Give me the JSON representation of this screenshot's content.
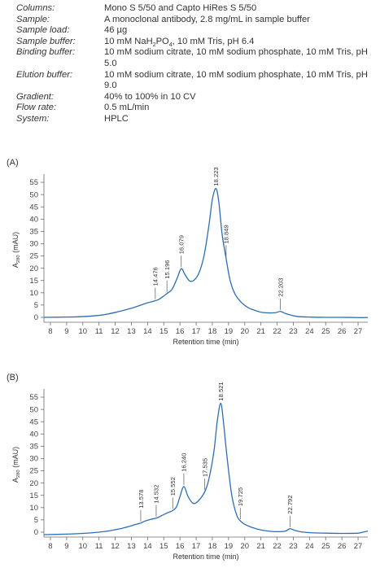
{
  "conditions": [
    {
      "label": "Columns:",
      "value": "Mono S 5/50 and Capto HiRes S 5/50"
    },
    {
      "label": "Sample:",
      "value": "A monoclonal antibody, 2.8 mg/mL in sample buffer"
    },
    {
      "label": "Sample load:",
      "value": "46 µg"
    },
    {
      "label": "Sample buffer:",
      "value_parts": [
        "10 mM NaH",
        "2",
        "PO",
        "4",
        ", 10 mM Tris, pH 6.4"
      ]
    },
    {
      "label": "Binding buffer:",
      "value": "10 mM sodium citrate, 10 mM sodium phosphate, 10 mM Tris, pH 5.0"
    },
    {
      "label": "Elution buffer:",
      "value": "10 mM sodium citrate, 10 mM sodium phosphate, 10 mM Tris, pH 9.0"
    },
    {
      "label": "Gradient:",
      "value": "40% to 100% in 10 CV"
    },
    {
      "label": "Flow rate:",
      "value": "0.5 mL/min"
    },
    {
      "label": "System:",
      "value": "HPLC"
    }
  ],
  "chart_data": [
    {
      "type": "line",
      "panel_label": "(A)",
      "xlabel": "Retention time (min)",
      "ylabel": "A",
      "ylabel_sub": "280",
      "ylabel_unit": " (mAU)",
      "xlim": [
        7.6,
        27.6
      ],
      "ylim": [
        -2,
        57
      ],
      "x_ticks": [
        8,
        9,
        10,
        11,
        12,
        13,
        14,
        15,
        16,
        17,
        18,
        19,
        20,
        21,
        22,
        23,
        24,
        25,
        26,
        27
      ],
      "y_ticks": [
        0,
        5,
        10,
        15,
        20,
        25,
        30,
        35,
        40,
        45,
        50,
        55
      ],
      "color": "#2c6fb5",
      "series": [
        {
          "x": [
            7.6,
            9,
            10,
            11,
            11.5,
            12,
            12.5,
            13,
            13.5,
            14,
            14.3,
            14.476,
            14.7,
            15,
            15.196,
            15.5,
            15.8,
            16.079,
            16.3,
            16.6,
            16.9,
            17.2,
            17.5,
            17.8,
            18.0,
            18.223,
            18.4,
            18.6,
            18.849,
            19.1,
            19.4,
            19.8,
            20.2,
            20.6,
            21,
            21.5,
            21.9,
            22.203,
            22.5,
            22.9,
            23.3,
            24,
            25,
            26,
            27,
            27.6
          ],
          "y": [
            0,
            0.1,
            0.3,
            0.8,
            1.3,
            2.0,
            2.8,
            3.7,
            4.8,
            5.9,
            6.4,
            6.8,
            7.3,
            8.7,
            9.7,
            11.3,
            15.5,
            19.8,
            17.5,
            14.8,
            15.3,
            18.5,
            25.5,
            38,
            48,
            52.5,
            47,
            34,
            24,
            15,
            9.5,
            6,
            4,
            2.9,
            2.1,
            1.8,
            1.9,
            2.4,
            1.6,
            0.8,
            0.3,
            0.1,
            0.0,
            0.0,
            -0.1,
            -0.1
          ]
        }
      ],
      "annotations": [
        {
          "text": "14.476",
          "x": 14.476
        },
        {
          "text": "15.196",
          "x": 15.196
        },
        {
          "text": "16.079",
          "x": 16.079
        },
        {
          "text": "18.223",
          "x": 18.223
        },
        {
          "text": "18.849",
          "x": 18.849
        },
        {
          "text": "22.203",
          "x": 22.203
        }
      ]
    },
    {
      "type": "line",
      "panel_label": "(B)",
      "xlabel": "Retention time (min)",
      "ylabel": "A",
      "ylabel_sub": "280",
      "ylabel_unit": " (mAU)",
      "xlim": [
        7.6,
        27.6
      ],
      "ylim": [
        -2,
        57
      ],
      "x_ticks": [
        8,
        9,
        10,
        11,
        12,
        13,
        14,
        15,
        16,
        17,
        18,
        19,
        20,
        21,
        22,
        23,
        24,
        25,
        26,
        27
      ],
      "y_ticks": [
        0,
        5,
        10,
        15,
        20,
        25,
        30,
        35,
        40,
        45,
        50,
        55
      ],
      "color": "#2c6fb5",
      "series": [
        {
          "x": [
            7.6,
            9,
            10,
            11,
            11.5,
            12,
            12.5,
            13,
            13.3,
            13.578,
            13.8,
            14.2,
            14.532,
            14.8,
            15.2,
            15.552,
            15.8,
            16.0,
            16.24,
            16.5,
            16.8,
            17.1,
            17.535,
            17.8,
            18.1,
            18.3,
            18.521,
            18.7,
            18.9,
            19.2,
            19.5,
            19.725,
            20,
            20.5,
            21,
            21.5,
            22,
            22.5,
            22.792,
            23.1,
            23.5,
            24,
            25,
            26,
            27,
            27.3,
            27.6
          ],
          "y": [
            -1,
            -0.8,
            -0.5,
            0,
            0.4,
            1.0,
            1.7,
            2.6,
            3.2,
            3.7,
            4.4,
            5.2,
            5.7,
            6.5,
            7.8,
            8.8,
            10.5,
            14.5,
            18.6,
            14.5,
            11.8,
            12.5,
            16.5,
            22,
            33,
            45,
            52.5,
            44,
            31,
            15,
            7,
            4.6,
            3.2,
            1.8,
            0.9,
            0.4,
            0.2,
            0.4,
            1.4,
            0.7,
            0.1,
            -0.2,
            -0.4,
            -0.5,
            -0.4,
            0,
            0.4
          ]
        }
      ],
      "annotations": [
        {
          "text": "13.578",
          "x": 13.578
        },
        {
          "text": "14.532",
          "x": 14.532
        },
        {
          "text": "15.552",
          "x": 15.552
        },
        {
          "text": "16.240",
          "x": 16.24
        },
        {
          "text": "17.535",
          "x": 17.535
        },
        {
          "text": "18.521",
          "x": 18.521
        },
        {
          "text": "19.725",
          "x": 19.725
        },
        {
          "text": "22.792",
          "x": 22.792
        }
      ]
    }
  ]
}
